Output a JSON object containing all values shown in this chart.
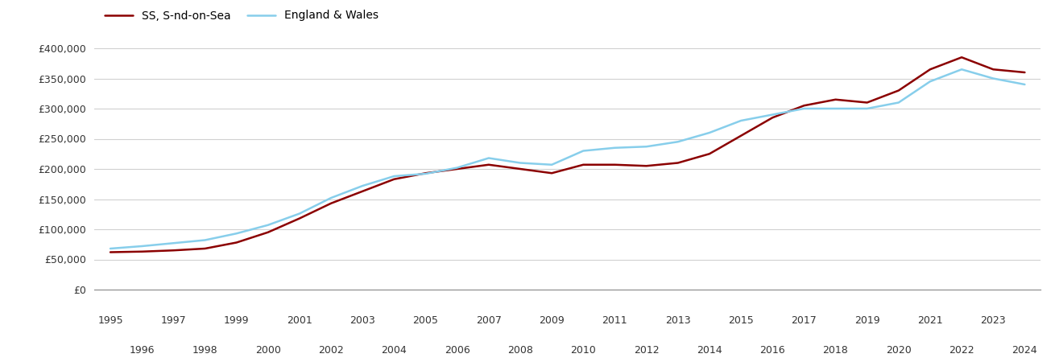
{
  "series": [
    {
      "label": "SS, S-nd-on-Sea",
      "color": "#8B0000",
      "years": [
        1995,
        1996,
        1997,
        1998,
        1999,
        2000,
        2001,
        2002,
        2003,
        2004,
        2005,
        2006,
        2007,
        2008,
        2009,
        2010,
        2011,
        2012,
        2013,
        2014,
        2015,
        2016,
        2017,
        2018,
        2019,
        2020,
        2021,
        2022,
        2023,
        2024
      ],
      "values": [
        62000,
        63000,
        65000,
        68000,
        78000,
        95000,
        118000,
        143000,
        163000,
        183000,
        193000,
        200000,
        207000,
        200000,
        193000,
        207000,
        207000,
        205000,
        210000,
        225000,
        255000,
        285000,
        305000,
        315000,
        310000,
        330000,
        365000,
        385000,
        365000,
        360000
      ]
    },
    {
      "label": "England & Wales",
      "color": "#87CEEB",
      "years": [
        1995,
        1996,
        1997,
        1998,
        1999,
        2000,
        2001,
        2002,
        2003,
        2004,
        2005,
        2006,
        2007,
        2008,
        2009,
        2010,
        2011,
        2012,
        2013,
        2014,
        2015,
        2016,
        2017,
        2018,
        2019,
        2020,
        2021,
        2022,
        2023,
        2024
      ],
      "values": [
        68000,
        72000,
        77000,
        82000,
        93000,
        107000,
        126000,
        152000,
        172000,
        188000,
        192000,
        202000,
        218000,
        210000,
        207000,
        230000,
        235000,
        237000,
        245000,
        260000,
        280000,
        290000,
        300000,
        300000,
        300000,
        310000,
        345000,
        365000,
        350000,
        340000
      ]
    }
  ],
  "xlim": [
    1994.5,
    2024.5
  ],
  "ylim": [
    0,
    420000
  ],
  "yticks": [
    0,
    50000,
    100000,
    150000,
    200000,
    250000,
    300000,
    350000,
    400000
  ],
  "xticks_odd": [
    1995,
    1997,
    1999,
    2001,
    2003,
    2005,
    2007,
    2009,
    2011,
    2013,
    2015,
    2017,
    2019,
    2021,
    2023
  ],
  "xticks_even": [
    1996,
    1998,
    2000,
    2002,
    2004,
    2006,
    2008,
    2010,
    2012,
    2014,
    2016,
    2018,
    2020,
    2022,
    2024
  ],
  "background_color": "#ffffff",
  "grid_color": "#d0d0d0",
  "line_width": 1.8,
  "tick_fontsize": 9,
  "legend_fontsize": 10
}
